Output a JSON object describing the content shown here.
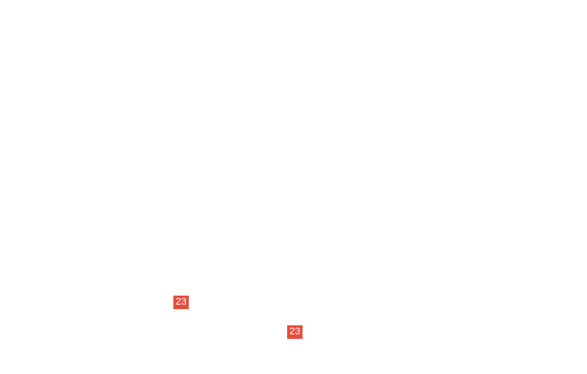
{
  "page": {
    "background_color": "#ffffff"
  },
  "badges": [
    {
      "label": "23",
      "background_color": "#e74c3c",
      "text_color": "#ffffff"
    },
    {
      "label": "23",
      "background_color": "#e74c3c",
      "text_color": "#ffffff"
    }
  ]
}
